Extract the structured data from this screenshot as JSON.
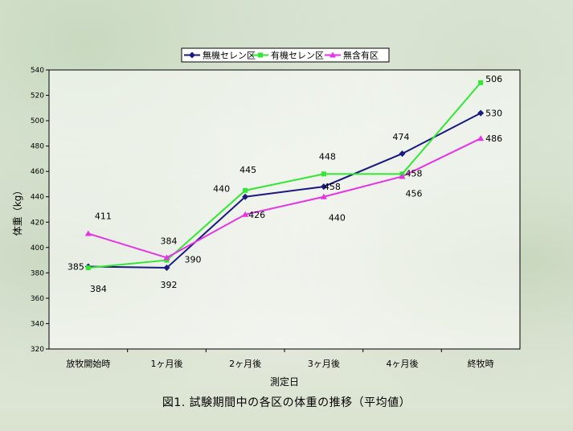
{
  "chart_data": {
    "type": "line",
    "title": "",
    "xlabel": "測定日",
    "ylabel": "体重（kg）",
    "ylim": [
      320,
      540
    ],
    "ytick_step": 20,
    "categories": [
      "放牧開始時",
      "1ヶ月後",
      "2ヶ月後",
      "3ヶ月後",
      "4ヶ月後",
      "終牧時"
    ],
    "series": [
      {
        "name": "無機セレン区",
        "values": [
          385,
          384,
          440,
          448,
          474,
          506
        ],
        "color": "#1a1a80",
        "marker": "diamond"
      },
      {
        "name": "有機セレン区",
        "values": [
          384,
          390,
          445,
          458,
          458,
          530
        ],
        "color": "#33e633",
        "marker": "square"
      },
      {
        "name": "無含有区",
        "values": [
          411,
          392,
          426,
          440,
          456,
          486
        ],
        "color": "#e633e6",
        "marker": "triangle"
      }
    ],
    "data_labels": [
      {
        "text": "385"
      },
      {
        "text": "384"
      },
      {
        "text": "411"
      },
      {
        "text": "392"
      },
      {
        "text": "384"
      },
      {
        "text": "390"
      },
      {
        "text": "440"
      },
      {
        "text": "445"
      },
      {
        "text": "426"
      },
      {
        "text": "458"
      },
      {
        "text": "448"
      },
      {
        "text": "440"
      },
      {
        "text": "474"
      },
      {
        "text": "458"
      },
      {
        "text": "456"
      },
      {
        "text": "530"
      },
      {
        "text": "506"
      },
      {
        "text": "486"
      }
    ],
    "legend_position": "top-center",
    "grid": false
  },
  "caption": "図1. 試験期間中の各区の体重の推移（平均値）"
}
